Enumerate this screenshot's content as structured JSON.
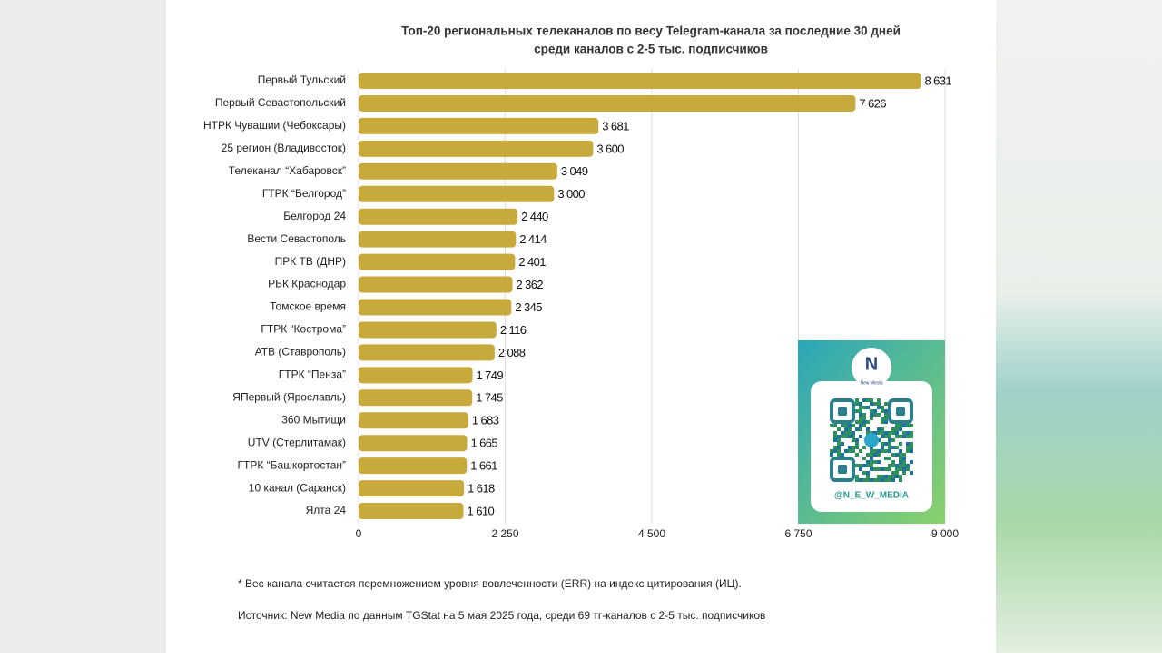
{
  "chart_data": {
    "type": "barh",
    "title": [
      "Топ-20 региональных телеканалов по весу Telegram-канала за последние 30 дней",
      "среди каналов с 2-5 тыс. подписчиков"
    ],
    "categories": [
      "Первый Тульский",
      "Первый Севастопольский",
      "НТРК Чувашии (Чебоксары)",
      "25 регион (Владивосток)",
      "Телеканал “Хабаровск”",
      "ГТРК “Белгород”",
      "Белгород 24",
      "Вести Севастополь",
      "ПРК ТВ (ДНР)",
      "РБК Краснодар",
      "Томское время",
      "ГТРК “Кострома”",
      "АТВ (Ставрополь)",
      "ГТРК “Пенза”",
      "ЯПервый (Ярославль)",
      "360 Мытищи",
      "UTV (Стерлитамак)",
      "ГТРК “Башкортостан”",
      "10 канал (Саранск)",
      "Ялта 24"
    ],
    "values": [
      8631,
      7626,
      3681,
      3600,
      3049,
      3000,
      2440,
      2414,
      2401,
      2362,
      2345,
      2116,
      2088,
      1749,
      1745,
      1683,
      1665,
      1661,
      1618,
      1610
    ],
    "value_labels": [
      "8 631",
      "7 626",
      "3 681",
      "3 600",
      "3 049",
      "3 000",
      "2 440",
      "2 414",
      "2 401",
      "2 362",
      "2 345",
      "2 116",
      "2 088",
      "1 749",
      "1 745",
      "1 683",
      "1 665",
      "1 661",
      "1 618",
      "1 610"
    ],
    "color": "#c8aa3c",
    "xlim": [
      0,
      9000
    ],
    "xticks": [
      0,
      {
        "value": 2250,
        "label": "2 250"
      },
      {
        "value": 4500,
        "label": "4 500"
      },
      {
        "value": 6750,
        "label": "6 750"
      },
      {
        "value": 9000,
        "label": "9 000"
      }
    ],
    "grid": true,
    "footnote": "* Вес канала считается перемножением уровня вовлеченности (ERR) на индекс цитирования (ИЦ).",
    "source": "Источник: New Media по данным TGStat на 5 мая 2025 года, среди 69 тг-каналов с 2-5 тыс. подписчиков"
  },
  "badge": {
    "logo": "New Media",
    "handle": "@N_E_W_MEDIA"
  }
}
